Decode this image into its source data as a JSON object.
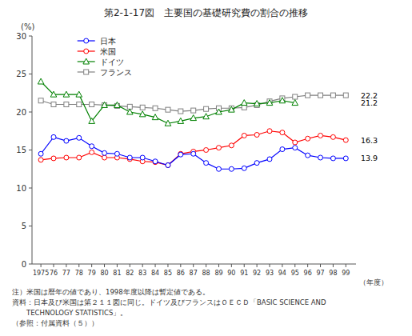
{
  "chart_data": {
    "type": "line",
    "title": "第2-1-17図　主要国の基礎研究費の割合の推移",
    "y_label": "(%)",
    "x_label": "（年度）",
    "x": [
      1975,
      1976,
      1977,
      1978,
      1979,
      1980,
      1981,
      1982,
      1983,
      1984,
      1985,
      1986,
      1987,
      1988,
      1989,
      1990,
      1991,
      1992,
      1993,
      1994,
      1995,
      1996,
      1997,
      1998,
      1999
    ],
    "xlim": [
      1974.3,
      1999.8
    ],
    "xticks": [
      1975,
      {
        "value": 1976,
        "label": "76"
      },
      {
        "value": 1977,
        "label": "77"
      },
      {
        "value": 1978,
        "label": "78"
      },
      {
        "value": 1979,
        "label": "79"
      },
      {
        "value": 1980,
        "label": "80"
      },
      {
        "value": 1981,
        "label": "81"
      },
      {
        "value": 1982,
        "label": "82"
      },
      {
        "value": 1983,
        "label": "83"
      },
      {
        "value": 1984,
        "label": "84"
      },
      {
        "value": 1985,
        "label": "85"
      },
      {
        "value": 1986,
        "label": "86"
      },
      {
        "value": 1987,
        "label": "87"
      },
      {
        "value": 1988,
        "label": "88"
      },
      {
        "value": 1989,
        "label": "89"
      },
      {
        "value": 1990,
        "label": "90"
      },
      {
        "value": 1991,
        "label": "91"
      },
      {
        "value": 1992,
        "label": "92"
      },
      {
        "value": 1993,
        "label": "93"
      },
      {
        "value": 1994,
        "label": "94"
      },
      {
        "value": 1995,
        "label": "95"
      },
      {
        "value": 1996,
        "label": "96"
      },
      {
        "value": 1997,
        "label": "97"
      },
      {
        "value": 1998,
        "label": "98"
      },
      {
        "value": 1999,
        "label": "99"
      }
    ],
    "ylim": [
      0,
      30
    ],
    "yticks": [
      0,
      5,
      10,
      15,
      20,
      25,
      30
    ],
    "grid": false,
    "legend": "upper left",
    "series": [
      {
        "name": "フランス",
        "color": "#808080",
        "marker": "square",
        "values": [
          21.5,
          21.0,
          21.0,
          21.0,
          21.0,
          20.9,
          20.8,
          20.7,
          20.6,
          20.5,
          20.3,
          20.1,
          20.2,
          20.4,
          20.5,
          20.5,
          20.6,
          20.9,
          21.4,
          21.8,
          22.0,
          22.2,
          22.2,
          22.2,
          22.2
        ]
      },
      {
        "name": "ドイツ",
        "color": "#008000",
        "marker": "triangle",
        "values": [
          24.0,
          22.3,
          22.3,
          22.3,
          18.8,
          20.9,
          20.9,
          20.0,
          19.7,
          19.3,
          18.5,
          18.8,
          19.2,
          19.4,
          20.0,
          20.3,
          21.2,
          21.1,
          21.2,
          21.5,
          21.2,
          null,
          null,
          null,
          null
        ]
      },
      {
        "name": "米国",
        "color": "#ff0000",
        "marker": "circle",
        "values": [
          13.7,
          13.9,
          14.0,
          14.0,
          14.7,
          14.0,
          14.0,
          13.8,
          13.5,
          13.4,
          13.0,
          14.5,
          14.8,
          15.0,
          15.3,
          15.6,
          16.9,
          17.0,
          17.5,
          17.3,
          16.0,
          16.5,
          16.9,
          16.7,
          16.3
        ]
      },
      {
        "name": "日本",
        "color": "#0000ff",
        "marker": "circle",
        "values": [
          14.5,
          16.7,
          16.2,
          16.6,
          15.5,
          14.6,
          14.5,
          14.0,
          14.0,
          13.5,
          13.0,
          14.4,
          14.5,
          13.3,
          12.5,
          12.5,
          12.6,
          13.3,
          13.8,
          15.1,
          15.3,
          14.3,
          14.0,
          13.9,
          13.9
        ]
      }
    ],
    "annotations": [
      {
        "text": "22.2",
        "y": 22.2
      },
      {
        "text": "21.2",
        "y": 21.2
      },
      {
        "text": "16.3",
        "y": 16.3
      },
      {
        "text": "13.9",
        "y": 13.9
      }
    ],
    "notes": [
      "注）米国は暦年の値であり、1998年度以降は暫定値である。",
      "資料：日本及び米国は第２１１図に同じ。ドイツ及びフランスはＯＥＣＤ「BASIC SCIENCE AND",
      "　　TECHNOLOGY STATISTICS」。",
      "（参照：付属資料（５））"
    ]
  }
}
